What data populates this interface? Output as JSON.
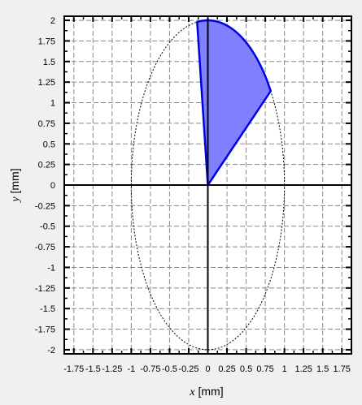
{
  "chart_data": {
    "type": "area",
    "xlabel_var": "x",
    "xlabel_unit": " [mm]",
    "ylabel_var": "y",
    "ylabel_unit": " [mm]",
    "xlim": [
      -1.875,
      1.875
    ],
    "ylim": [
      -2.05,
      2.05
    ],
    "xticks": [
      -1.75,
      -1.5,
      -1.25,
      -1,
      -0.75,
      -0.5,
      -0.25,
      0,
      0.25,
      0.5,
      0.75,
      1,
      1.25,
      1.5,
      1.75
    ],
    "xtick_labels": [
      "-1.75",
      "-1.5",
      "-1.25",
      "-1",
      "-0.75",
      "-0.5",
      "-0.25",
      "0",
      "0.25",
      "0.5",
      "0.75",
      "1",
      "1.25",
      "1.5",
      "1.75"
    ],
    "yticks": [
      2,
      1.75,
      1.5,
      1.25,
      1,
      0.75,
      0.5,
      0.25,
      0,
      -0.25,
      -0.5,
      -0.75,
      -1,
      -1.25,
      -1.5,
      -1.75,
      -2
    ],
    "ytick_labels": [
      "2",
      "1.75",
      "1.5",
      "1.25",
      "1",
      "0.75",
      "0.5",
      "0.25",
      "0",
      "-0.25",
      "-0.5",
      "-0.75",
      "-1",
      "-1.25",
      "-1.5",
      "-1.75",
      "-2"
    ],
    "minor_tick_step": 0.125,
    "grid": true,
    "ellipse": {
      "center": [
        0,
        0
      ],
      "semi_axis_x": 1,
      "semi_axis_y": 2,
      "style": "dotted",
      "color": "#000000"
    },
    "sector": {
      "center": [
        0,
        0
      ],
      "start_point": [
        0.82,
        1.14
      ],
      "end_point": [
        -0.14,
        1.98
      ],
      "arc_on": "ellipse",
      "fill": "#8080ff",
      "stroke": "#0000e0"
    }
  }
}
